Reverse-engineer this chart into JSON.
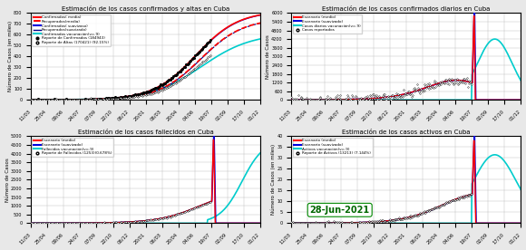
{
  "top_left_title": "Estimación de los casos confirmados y altas en Cuba",
  "top_right_title": "Estimación de los casos confirmados diarios en Cuba",
  "bot_left_title": "Estimación de los casos fallecidos en Cuba",
  "bot_right_title": "Estimación de los casos activos en Cuba",
  "ylabel": "Número de Casos",
  "ylabel_thousands": "Número de Casos (en miles)",
  "xtick_labels": [
    "11/03",
    "25/04",
    "09/06",
    "24/07",
    "07/09",
    "22/10",
    "06/12",
    "20/01",
    "06/03",
    "20/04",
    "04/06",
    "19/07",
    "02/09",
    "17/10",
    "01/12"
  ],
  "date_label": "28-Jun-2021",
  "background_color": "#e8e8e8",
  "tl_ylim": 800,
  "tr_ylim": 6000,
  "bl_ylim": 5000,
  "br_ylim": 40
}
